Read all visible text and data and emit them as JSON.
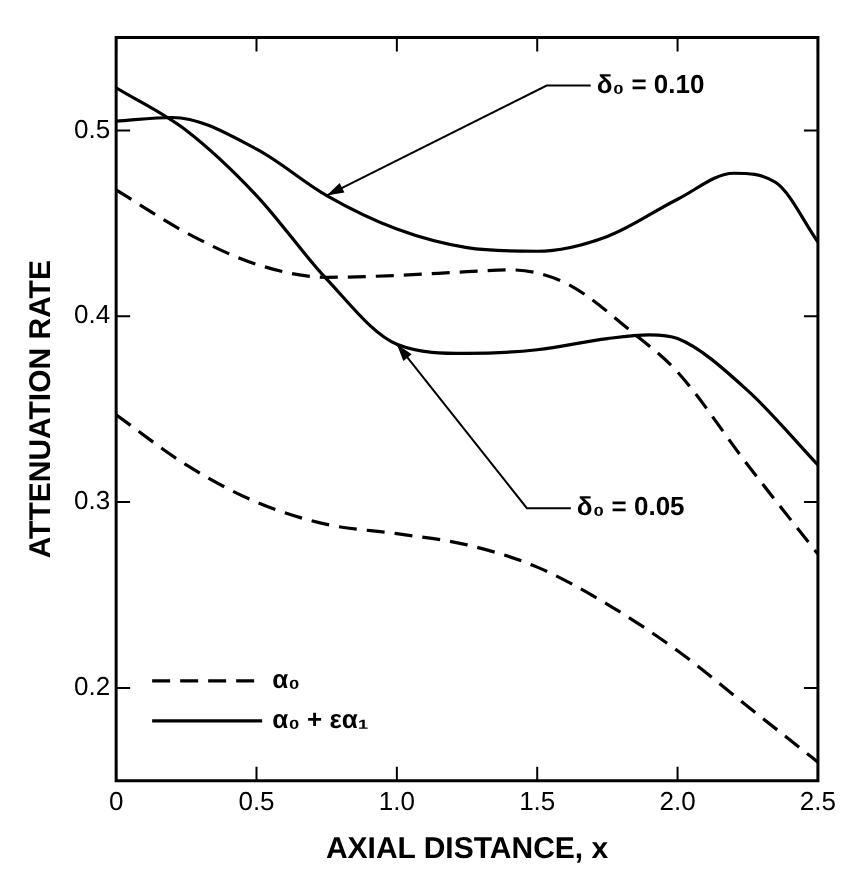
{
  "chart_data": {
    "type": "line",
    "xlabel": "AXIAL DISTANCE, x",
    "ylabel": "ATTENUATION RATE",
    "xlim": [
      0,
      2.5
    ],
    "xticks": [
      0,
      0.5,
      {
        "value": 1,
        "label": "1.0"
      },
      1.5,
      {
        "value": 2,
        "label": "2.0"
      },
      2.5
    ],
    "ylim": [
      0.15,
      0.55
    ],
    "yticks": [
      0.2,
      0.3,
      0.4,
      0.5
    ],
    "grid": false,
    "legend": "bottom left",
    "marker": "none",
    "series": [
      {
        "name": "α₀",
        "color": "#000000",
        "line_style": "dashed",
        "x": [
          0,
          0.25,
          0.5,
          0.75,
          1.0,
          1.25,
          1.4,
          1.6,
          1.85,
          2.0,
          2.25,
          2.5
        ],
        "values": [
          0.468,
          0.445,
          0.428,
          0.421,
          0.422,
          0.424,
          0.425,
          0.418,
          0.39,
          0.37,
          0.32,
          0.272
        ]
      },
      {
        "name": "α₀ + εα₁",
        "color": "#000000",
        "line_style": "solid",
        "x": [
          0,
          0.2,
          0.5,
          0.75,
          1.0,
          1.25,
          1.5,
          1.75,
          2.0,
          2.2,
          2.35,
          2.5
        ],
        "values": [
          0.505,
          0.507,
          0.49,
          0.465,
          0.447,
          0.437,
          0.435,
          0.443,
          0.463,
          0.477,
          0.472,
          0.44
        ]
      },
      {
        "color": "#000000",
        "line_style": "dashed",
        "x": [
          0,
          0.25,
          0.5,
          0.75,
          1.0,
          1.25,
          1.5,
          1.75,
          2.0,
          2.25,
          2.5
        ],
        "values": [
          0.347,
          0.32,
          0.3,
          0.288,
          0.283,
          0.277,
          0.265,
          0.245,
          0.22,
          0.19,
          0.16
        ]
      },
      {
        "color": "#000000",
        "line_style": "solid",
        "x": [
          0,
          0.25,
          0.5,
          0.75,
          1.0,
          1.25,
          1.5,
          1.75,
          1.9,
          2.0,
          2.25,
          2.5
        ],
        "values": [
          0.523,
          0.5,
          0.465,
          0.42,
          0.385,
          0.38,
          0.382,
          0.388,
          0.39,
          0.388,
          0.36,
          0.32
        ]
      }
    ],
    "annotations": [
      {
        "text": "δ₀ = 0.10",
        "x": 0.75,
        "y": 0.465
      },
      {
        "text": "δ₀ = 0.05",
        "x": 1.0,
        "y": 0.385
      }
    ]
  }
}
